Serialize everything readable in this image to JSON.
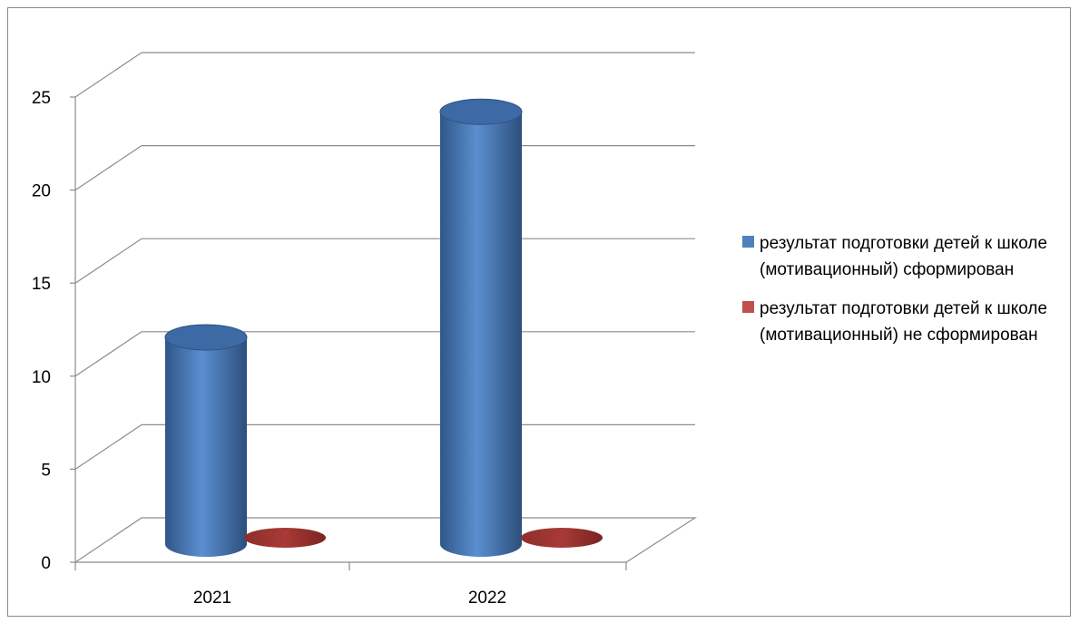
{
  "chart_data": {
    "type": "bar",
    "style": "3d-cylinder",
    "categories": [
      "2021",
      "2022"
    ],
    "series": [
      {
        "name": "результат подготовки детей к школе (мотивационный) сформирован",
        "values": [
          11,
          23
        ],
        "color": "#4f81bd"
      },
      {
        "name": "результат подготовки детей к школе (мотивационный) не сформирован",
        "values": [
          0,
          0
        ],
        "color": "#c0504d"
      }
    ],
    "y_ticks": [
      "0",
      "5",
      "10",
      "15",
      "20",
      "25"
    ],
    "ylim": [
      0,
      25
    ],
    "grid": true,
    "legend_position": "right"
  }
}
